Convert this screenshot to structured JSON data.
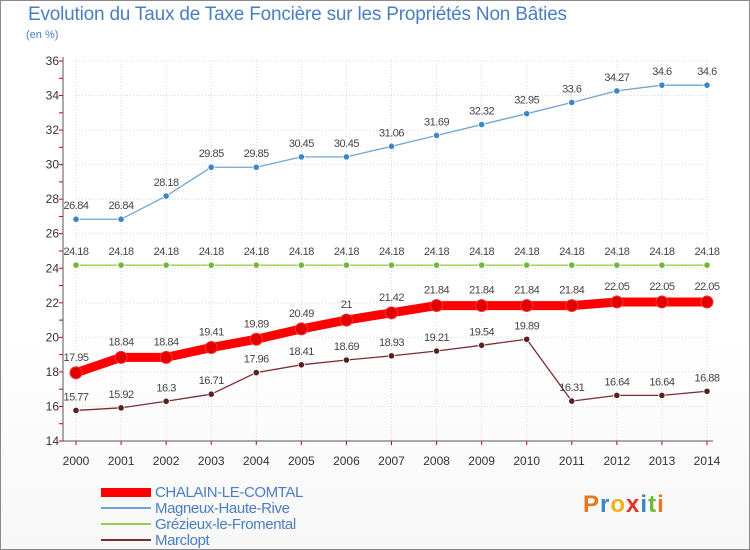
{
  "header": {
    "title": "Evolution du Taux de Taxe Foncière sur les Propriétés Non Bâties",
    "subtitle": "(en %)"
  },
  "logo": {
    "letters": [
      "P",
      "r",
      "o",
      "x",
      "i",
      "t",
      "i"
    ]
  },
  "colors": {
    "title": "#4a7ec0",
    "axis": "#555555",
    "grid": "#d9d9d9",
    "tick_red": "#cc0000"
  },
  "chart_data": {
    "type": "line",
    "title": "Evolution du Taux de Taxe Foncière sur les Propriétés Non Bâties",
    "ylabel": "(en %)",
    "x": [
      "2000",
      "2001",
      "2002",
      "2003",
      "2004",
      "2005",
      "2006",
      "2007",
      "2008",
      "2009",
      "2010",
      "2011",
      "2012",
      "2013",
      "2014"
    ],
    "ylim": [
      14,
      36
    ],
    "yticks": [
      14,
      16,
      18,
      20,
      22,
      24,
      26,
      28,
      30,
      32,
      34,
      36
    ],
    "grid": true,
    "legend_position": "bottom-left",
    "series": [
      {
        "name": "Magneux-Haute-Rive",
        "color": "#6fa5d4",
        "marker": "#3b86c6",
        "width": 1.3,
        "values": [
          26.84,
          26.84,
          28.18,
          29.85,
          29.85,
          30.45,
          30.45,
          31.06,
          31.69,
          32.32,
          32.95,
          33.6,
          34.27,
          34.6,
          34.6
        ],
        "labels": [
          "26.84",
          "26.84",
          "28.18",
          "29.85",
          "29.85",
          "30.45",
          "30.45",
          "31.06",
          "31.69",
          "32.32",
          "32.95",
          "33.6",
          "34.27",
          "34.6",
          "34.6"
        ]
      },
      {
        "name": "Grézieux-le-Fromental",
        "color": "#92d050",
        "marker": "#6fb83a",
        "width": 1.3,
        "values": [
          24.18,
          24.18,
          24.18,
          24.18,
          24.18,
          24.18,
          24.18,
          24.18,
          24.18,
          24.18,
          24.18,
          24.18,
          24.18,
          24.18,
          24.18
        ],
        "labels": [
          "24.18",
          "24.18",
          "24.18",
          "24.18",
          "24.18",
          "24.18",
          "24.18",
          "24.18",
          "24.18",
          "24.18",
          "24.18",
          "24.18",
          "24.18",
          "24.18",
          "24.18"
        ]
      },
      {
        "name": "Marclopt",
        "color": "#7a2e2e",
        "marker": "#5c1f1f",
        "width": 1.3,
        "values": [
          15.77,
          15.92,
          16.3,
          16.71,
          17.96,
          18.41,
          18.69,
          18.93,
          19.21,
          19.54,
          19.89,
          16.31,
          16.64,
          16.64,
          16.88
        ],
        "labels": [
          "15.77",
          "15.92",
          "16.3",
          "16.71",
          "17.96",
          "18.41",
          "18.69",
          "18.93",
          "19.21",
          "19.54",
          "19.89",
          "16.31",
          "16.64",
          "16.64",
          "16.88"
        ]
      },
      {
        "name": "CHALAIN-LE-COMTAL",
        "color": "#ff0000",
        "marker": "#e00000",
        "width": 9,
        "values": [
          17.95,
          18.84,
          18.84,
          19.41,
          19.89,
          20.49,
          21,
          21.42,
          21.84,
          21.84,
          21.84,
          21.84,
          22.05,
          22.05,
          22.05
        ],
        "labels": [
          "17.95",
          "18.84",
          "18.84",
          "19.41",
          "19.89",
          "20.49",
          "21",
          "21.42",
          "21.84",
          "21.84",
          "21.84",
          "21.84",
          "22.05",
          "22.05",
          "22.05"
        ]
      }
    ]
  },
  "legend": [
    {
      "label": "CHALAIN-LE-COMTAL",
      "color": "#ff0000",
      "width": 9
    },
    {
      "label": "Magneux-Haute-Rive",
      "color": "#6fa5d4",
      "width": 2
    },
    {
      "label": "Grézieux-le-Fromental",
      "color": "#92d050",
      "width": 2
    },
    {
      "label": "Marclopt",
      "color": "#7a2e2e",
      "width": 2
    }
  ]
}
